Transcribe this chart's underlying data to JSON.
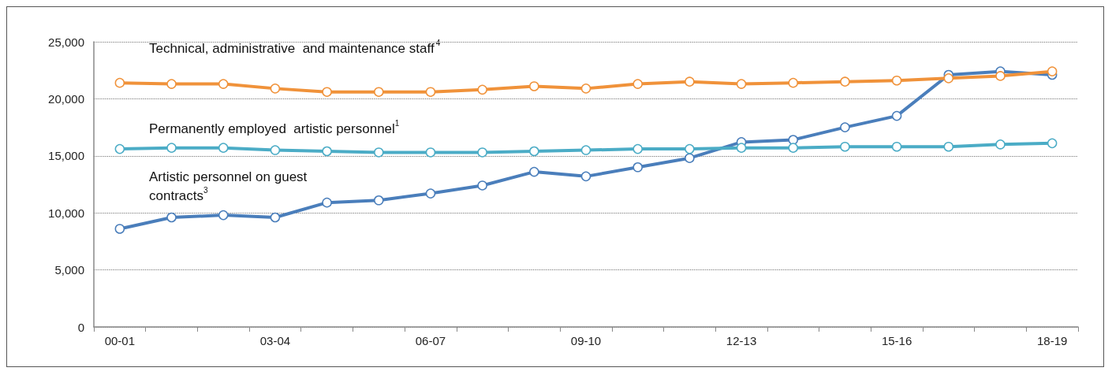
{
  "chart_data": {
    "type": "line",
    "categories": [
      "00-01",
      null,
      null,
      "03-04",
      null,
      null,
      "06-07",
      null,
      null,
      "09-10",
      null,
      null,
      "12-13",
      null,
      null,
      "15-16",
      null,
      null,
      "18-19"
    ],
    "series": [
      {
        "name": "Technical, administrative  and maintenance staff$^{4}$",
        "color": "#f0923a",
        "values": [
          21400,
          21300,
          21300,
          20900,
          20600,
          20600,
          20600,
          20800,
          21100,
          20900,
          21300,
          21500,
          21300,
          21400,
          21500,
          21600,
          21800,
          22000,
          22400
        ]
      },
      {
        "name": "Permanently employed  artistic personnel$^{1}$",
        "color": "#4bacc6",
        "values": [
          15600,
          15700,
          15700,
          15500,
          15400,
          15300,
          15300,
          15300,
          15400,
          15500,
          15600,
          15600,
          15700,
          15700,
          15800,
          15800,
          15800,
          16000,
          16100
        ]
      },
      {
        "name": "Artistic personnel on guest contracts$^{3}$",
        "color": "#4a7ebb",
        "values": [
          8600,
          9600,
          9800,
          9600,
          10900,
          11100,
          11700,
          12400,
          13600,
          13200,
          14000,
          14800,
          16200,
          16400,
          17500,
          18500,
          22100,
          22400,
          22100
        ]
      }
    ],
    "ylim": [
      0,
      25000
    ],
    "yticks": [
      0,
      {
        "value": 5000,
        "label": "5,000"
      },
      {
        "value": 10000,
        "label": "10,000"
      },
      {
        "value": 15000,
        "label": "15,000"
      },
      {
        "value": 20000,
        "label": "20,000"
      },
      {
        "value": 25000,
        "label": "25,000"
      }
    ],
    "grid": "y",
    "marker": "circle",
    "line_style": "solid"
  }
}
